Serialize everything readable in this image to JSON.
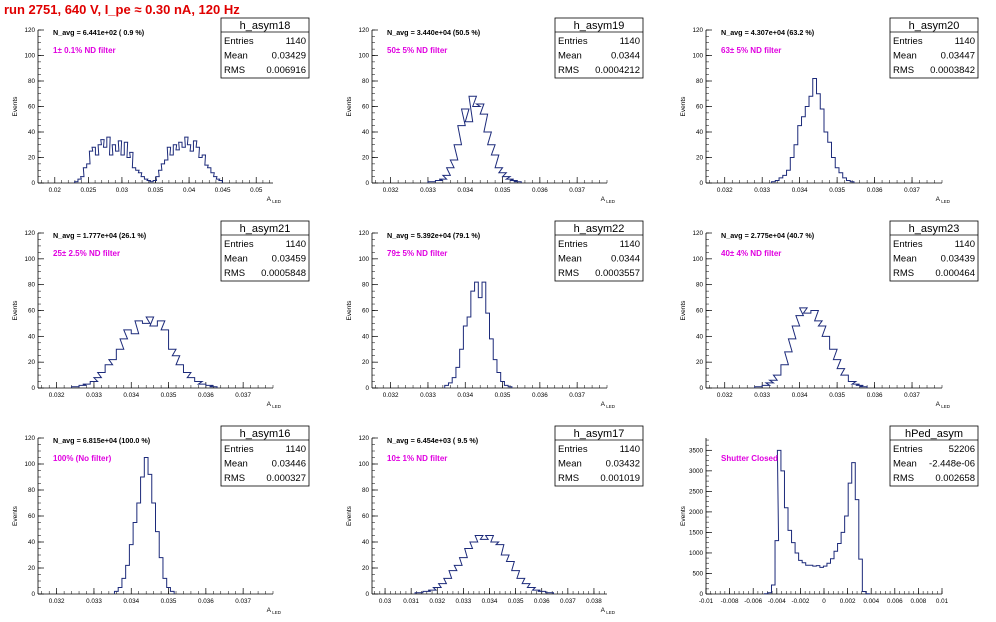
{
  "header": "run 2751,   640 V, I_pe ≈ 0.30 nA, 120 Hz",
  "stat_labels": {
    "entries": "Entries",
    "mean": "Mean",
    "rms": "RMS"
  },
  "axis": {
    "y_title": "Events",
    "x_title": "A_{LED}"
  },
  "colors": {
    "histogram": "#1c2a7a",
    "filter_label": "#e000e0",
    "header": "#e00000",
    "axis": "#000000"
  },
  "chart_data": [
    {
      "type": "histogram",
      "title": "h_asym18",
      "stats": {
        "entries": "1140",
        "mean": "0.03429",
        "rms": "0.006916"
      },
      "navg": "N_avg = 6.441e+02 ( 0.9 %)",
      "filter": "1± 0.1% ND filter",
      "xlim": [
        0.0175,
        0.0525
      ],
      "ylim": [
        0,
        120
      ],
      "xticks": [
        "0.02",
        "0.025",
        "0.03",
        "0.035",
        "0.04",
        "0.045",
        "0.05"
      ],
      "yticks": [
        "0",
        "20",
        "40",
        "60",
        "80",
        "100",
        "120"
      ],
      "bins": [
        [
          0.0232,
          1
        ],
        [
          0.0237,
          3
        ],
        [
          0.0241,
          5
        ],
        [
          0.0245,
          12
        ],
        [
          0.025,
          15
        ],
        [
          0.0254,
          25
        ],
        [
          0.0258,
          28
        ],
        [
          0.0263,
          22
        ],
        [
          0.0267,
          30
        ],
        [
          0.0271,
          34
        ],
        [
          0.0275,
          28
        ],
        [
          0.028,
          36
        ],
        [
          0.0284,
          22
        ],
        [
          0.0288,
          30
        ],
        [
          0.0293,
          25
        ],
        [
          0.0297,
          33
        ],
        [
          0.0301,
          22
        ],
        [
          0.0306,
          32
        ],
        [
          0.031,
          20
        ],
        [
          0.0314,
          24
        ],
        [
          0.0318,
          12
        ],
        [
          0.0323,
          10
        ],
        [
          0.0327,
          8
        ],
        [
          0.0331,
          5
        ],
        [
          0.0336,
          3
        ],
        [
          0.034,
          2
        ],
        [
          0.0344,
          1
        ],
        [
          0.0349,
          2
        ],
        [
          0.0353,
          5
        ],
        [
          0.0357,
          10
        ],
        [
          0.0361,
          15
        ],
        [
          0.0366,
          18
        ],
        [
          0.037,
          28
        ],
        [
          0.0374,
          22
        ],
        [
          0.0379,
          30
        ],
        [
          0.0383,
          26
        ],
        [
          0.0387,
          32
        ],
        [
          0.0392,
          28
        ],
        [
          0.0396,
          36
        ],
        [
          0.04,
          30
        ],
        [
          0.0404,
          25
        ],
        [
          0.0409,
          33
        ],
        [
          0.0413,
          28
        ],
        [
          0.0417,
          20
        ],
        [
          0.0422,
          22
        ],
        [
          0.0426,
          14
        ],
        [
          0.043,
          12
        ],
        [
          0.0435,
          8
        ],
        [
          0.0439,
          5
        ],
        [
          0.0443,
          3
        ],
        [
          0.0447,
          2
        ]
      ]
    },
    {
      "type": "histogram",
      "title": "h_asym19",
      "stats": {
        "entries": "1140",
        "mean": "0.0344",
        "rms": "0.0004212"
      },
      "navg": "N_avg = 3.440e+04 (50.5 %)",
      "filter": "50± 5% ND filter",
      "xlim": [
        0.0315,
        0.0378
      ],
      "ylim": [
        0,
        120
      ],
      "xticks": [
        "0.032",
        "0.033",
        "0.034",
        "0.035",
        "0.036",
        "0.037"
      ],
      "yticks": [
        "0",
        "20",
        "40",
        "60",
        "80",
        "100",
        "120"
      ],
      "bins": [
        [
          0.0331,
          1
        ],
        [
          0.0333,
          2
        ],
        [
          0.0334,
          3
        ],
        [
          0.0335,
          6
        ],
        [
          0.0336,
          12
        ],
        [
          0.0337,
          18
        ],
        [
          0.0338,
          30
        ],
        [
          0.0339,
          45
        ],
        [
          0.034,
          58
        ],
        [
          0.0341,
          48
        ],
        [
          0.0342,
          68
        ],
        [
          0.0343,
          60
        ],
        [
          0.0344,
          62
        ],
        [
          0.0345,
          54
        ],
        [
          0.0346,
          40
        ],
        [
          0.0347,
          30
        ],
        [
          0.0348,
          22
        ],
        [
          0.0349,
          12
        ],
        [
          0.035,
          8
        ],
        [
          0.0351,
          5
        ],
        [
          0.0352,
          3
        ],
        [
          0.0353,
          2
        ],
        [
          0.0354,
          1
        ]
      ]
    },
    {
      "type": "histogram",
      "title": "h_asym20",
      "stats": {
        "entries": "1140",
        "mean": "0.03447",
        "rms": "0.0003842"
      },
      "navg": "N_avg = 4.307e+04 (63.2 %)",
      "filter": "63± 5% ND filter",
      "xlim": [
        0.0315,
        0.0378
      ],
      "ylim": [
        0,
        120
      ],
      "xticks": [
        "0.032",
        "0.033",
        "0.034",
        "0.035",
        "0.036",
        "0.037"
      ],
      "yticks": [
        "0",
        "20",
        "40",
        "60",
        "80",
        "100",
        "120"
      ],
      "bins": [
        [
          0.0333,
          1
        ],
        [
          0.0334,
          2
        ],
        [
          0.0335,
          4
        ],
        [
          0.0336,
          6
        ],
        [
          0.0337,
          10
        ],
        [
          0.0338,
          20
        ],
        [
          0.0339,
          30
        ],
        [
          0.034,
          45
        ],
        [
          0.0341,
          52
        ],
        [
          0.0342,
          60
        ],
        [
          0.0343,
          68
        ],
        [
          0.0344,
          82
        ],
        [
          0.0345,
          70
        ],
        [
          0.0346,
          58
        ],
        [
          0.0347,
          40
        ],
        [
          0.0348,
          32
        ],
        [
          0.0349,
          20
        ],
        [
          0.035,
          12
        ],
        [
          0.0351,
          8
        ],
        [
          0.0352,
          4
        ],
        [
          0.0353,
          2
        ],
        [
          0.0354,
          1
        ]
      ]
    },
    {
      "type": "histogram",
      "title": "h_asym21",
      "stats": {
        "entries": "1140",
        "mean": "0.03459",
        "rms": "0.0005848"
      },
      "navg": "N_avg = 1.777e+04 (26.1 %)",
      "filter": "25± 2.5% ND filter",
      "xlim": [
        0.0315,
        0.0378
      ],
      "ylim": [
        0,
        120
      ],
      "xticks": [
        "0.032",
        "0.033",
        "0.034",
        "0.035",
        "0.036",
        "0.037"
      ],
      "yticks": [
        "0",
        "20",
        "40",
        "60",
        "80",
        "100",
        "120"
      ],
      "bins": [
        [
          0.0325,
          1
        ],
        [
          0.0327,
          2
        ],
        [
          0.0328,
          3
        ],
        [
          0.033,
          5
        ],
        [
          0.0331,
          8
        ],
        [
          0.0332,
          12
        ],
        [
          0.0334,
          18
        ],
        [
          0.0335,
          22
        ],
        [
          0.0337,
          30
        ],
        [
          0.0338,
          38
        ],
        [
          0.0339,
          45
        ],
        [
          0.0341,
          42
        ],
        [
          0.0342,
          52
        ],
        [
          0.0344,
          50
        ],
        [
          0.0345,
          55
        ],
        [
          0.0346,
          48
        ],
        [
          0.0348,
          52
        ],
        [
          0.0349,
          45
        ],
        [
          0.0351,
          30
        ],
        [
          0.0352,
          25
        ],
        [
          0.0353,
          18
        ],
        [
          0.0355,
          12
        ],
        [
          0.0356,
          8
        ],
        [
          0.0358,
          5
        ],
        [
          0.0359,
          3
        ],
        [
          0.0361,
          2
        ],
        [
          0.0362,
          1
        ]
      ]
    },
    {
      "type": "histogram",
      "title": "h_asym22",
      "stats": {
        "entries": "1140",
        "mean": "0.0344",
        "rms": "0.0003557"
      },
      "navg": "N_avg = 5.392e+04 (79.1 %)",
      "filter": "79± 5% ND filter",
      "xlim": [
        0.0315,
        0.0378
      ],
      "ylim": [
        0,
        120
      ],
      "xticks": [
        "0.032",
        "0.033",
        "0.034",
        "0.035",
        "0.036",
        "0.037"
      ],
      "yticks": [
        "0",
        "20",
        "40",
        "60",
        "80",
        "100",
        "120"
      ],
      "bins": [
        [
          0.0335,
          2
        ],
        [
          0.0336,
          4
        ],
        [
          0.0337,
          8
        ],
        [
          0.0338,
          16
        ],
        [
          0.0339,
          30
        ],
        [
          0.034,
          48
        ],
        [
          0.0341,
          55
        ],
        [
          0.0342,
          75
        ],
        [
          0.0343,
          82
        ],
        [
          0.0344,
          70
        ],
        [
          0.0345,
          82
        ],
        [
          0.0346,
          58
        ],
        [
          0.0347,
          38
        ],
        [
          0.0348,
          22
        ],
        [
          0.0349,
          12
        ],
        [
          0.035,
          5
        ],
        [
          0.0351,
          2
        ],
        [
          0.0352,
          1
        ]
      ]
    },
    {
      "type": "histogram",
      "title": "h_asym23",
      "stats": {
        "entries": "1140",
        "mean": "0.03439",
        "rms": "0.000464"
      },
      "navg": "N_avg = 2.775e+04 (40.7 %)",
      "filter": "40± 4% ND filter",
      "xlim": [
        0.0315,
        0.0378
      ],
      "ylim": [
        0,
        120
      ],
      "xticks": [
        "0.032",
        "0.033",
        "0.034",
        "0.035",
        "0.036",
        "0.037"
      ],
      "yticks": [
        "0",
        "20",
        "40",
        "60",
        "80",
        "100",
        "120"
      ],
      "bins": [
        [
          0.0329,
          1
        ],
        [
          0.0331,
          2
        ],
        [
          0.0332,
          4
        ],
        [
          0.0333,
          6
        ],
        [
          0.0334,
          10
        ],
        [
          0.0336,
          18
        ],
        [
          0.0337,
          28
        ],
        [
          0.0338,
          38
        ],
        [
          0.0339,
          48
        ],
        [
          0.034,
          56
        ],
        [
          0.0341,
          62
        ],
        [
          0.0342,
          58
        ],
        [
          0.0344,
          60
        ],
        [
          0.0345,
          52
        ],
        [
          0.0346,
          48
        ],
        [
          0.0347,
          40
        ],
        [
          0.0349,
          30
        ],
        [
          0.035,
          22
        ],
        [
          0.0351,
          15
        ],
        [
          0.0352,
          10
        ],
        [
          0.0354,
          5
        ],
        [
          0.0355,
          3
        ],
        [
          0.0356,
          2
        ],
        [
          0.0357,
          1
        ]
      ]
    },
    {
      "type": "histogram",
      "title": "h_asym16",
      "stats": {
        "entries": "1140",
        "mean": "0.03446",
        "rms": "0.000327"
      },
      "navg": "N_avg = 6.815e+04 (100.0 %)",
      "filter": "100% (No filter)",
      "xlim": [
        0.0315,
        0.0378
      ],
      "ylim": [
        0,
        120
      ],
      "xticks": [
        "0.032",
        "0.033",
        "0.034",
        "0.035",
        "0.036",
        "0.037"
      ],
      "yticks": [
        "0",
        "20",
        "40",
        "60",
        "80",
        "100",
        "120"
      ],
      "bins": [
        [
          0.0336,
          2
        ],
        [
          0.0337,
          5
        ],
        [
          0.0338,
          12
        ],
        [
          0.0339,
          22
        ],
        [
          0.034,
          38
        ],
        [
          0.0341,
          55
        ],
        [
          0.0342,
          70
        ],
        [
          0.0343,
          90
        ],
        [
          0.0344,
          105
        ],
        [
          0.0345,
          92
        ],
        [
          0.0346,
          70
        ],
        [
          0.0347,
          48
        ],
        [
          0.0348,
          28
        ],
        [
          0.0349,
          12
        ],
        [
          0.035,
          5
        ],
        [
          0.0351,
          2
        ]
      ]
    },
    {
      "type": "histogram",
      "title": "h_asym17",
      "stats": {
        "entries": "1140",
        "mean": "0.03432",
        "rms": "0.001019"
      },
      "navg": "N_avg = 6.454e+03 ( 9.5 %)",
      "filter": "10± 1% ND filter",
      "xlim": [
        0.0295,
        0.0385
      ],
      "ylim": [
        0,
        120
      ],
      "xticks": [
        "0.03",
        "0.031",
        "0.032",
        "0.033",
        "0.034",
        "0.035",
        "0.036",
        "0.037",
        "0.038"
      ],
      "yticks": [
        "0",
        "20",
        "40",
        "60",
        "80",
        "100",
        "120"
      ],
      "bins": [
        [
          0.0313,
          1
        ],
        [
          0.0316,
          2
        ],
        [
          0.0318,
          3
        ],
        [
          0.032,
          5
        ],
        [
          0.0322,
          8
        ],
        [
          0.0324,
          12
        ],
        [
          0.0326,
          18
        ],
        [
          0.0328,
          22
        ],
        [
          0.033,
          28
        ],
        [
          0.0332,
          35
        ],
        [
          0.0334,
          40
        ],
        [
          0.0336,
          45
        ],
        [
          0.0338,
          42
        ],
        [
          0.034,
          45
        ],
        [
          0.0342,
          40
        ],
        [
          0.0344,
          38
        ],
        [
          0.0346,
          30
        ],
        [
          0.0348,
          25
        ],
        [
          0.035,
          18
        ],
        [
          0.0352,
          12
        ],
        [
          0.0354,
          8
        ],
        [
          0.0356,
          5
        ],
        [
          0.0358,
          3
        ],
        [
          0.036,
          2
        ],
        [
          0.0363,
          1
        ]
      ]
    },
    {
      "type": "histogram",
      "title": "hPed_asym",
      "stats": {
        "entries": "52206",
        "mean": "-2.448e-06",
        "rms": "0.002658"
      },
      "filter": "Shutter Closed",
      "xlim": [
        -0.01,
        0.01
      ],
      "ylim": [
        0,
        3800
      ],
      "xticks": [
        "-0.01",
        "-0.008",
        "-0.006",
        "-0.004",
        "-0.002",
        "0",
        "0.002",
        "0.004",
        "0.006",
        "0.008",
        "0.01"
      ],
      "yticks": [
        "0",
        "500",
        "1000",
        "1500",
        "2000",
        "2500",
        "3000",
        "3500"
      ],
      "bins": [
        [
          -0.0049,
          5
        ],
        [
          -0.0046,
          30
        ],
        [
          -0.0043,
          220
        ],
        [
          -0.004,
          1300
        ],
        [
          -0.0038,
          3500
        ],
        [
          -0.0035,
          3000
        ],
        [
          -0.0032,
          2100
        ],
        [
          -0.0029,
          1550
        ],
        [
          -0.0026,
          1250
        ],
        [
          -0.0023,
          1000
        ],
        [
          -0.002,
          820
        ],
        [
          -0.0017,
          760
        ],
        [
          -0.0014,
          700
        ],
        [
          -0.0011,
          700
        ],
        [
          -0.0008,
          680
        ],
        [
          -0.0005,
          690
        ],
        [
          -0.0002,
          650
        ],
        [
          0.0001,
          680
        ],
        [
          0.0004,
          750
        ],
        [
          0.0007,
          860
        ],
        [
          0.001,
          1040
        ],
        [
          0.0013,
          1230
        ],
        [
          0.0016,
          1500
        ],
        [
          0.0019,
          1900
        ],
        [
          0.0022,
          2700
        ],
        [
          0.0025,
          3200
        ],
        [
          0.0028,
          2300
        ],
        [
          0.0031,
          850
        ],
        [
          0.0034,
          60
        ],
        [
          0.0037,
          5
        ]
      ]
    }
  ]
}
